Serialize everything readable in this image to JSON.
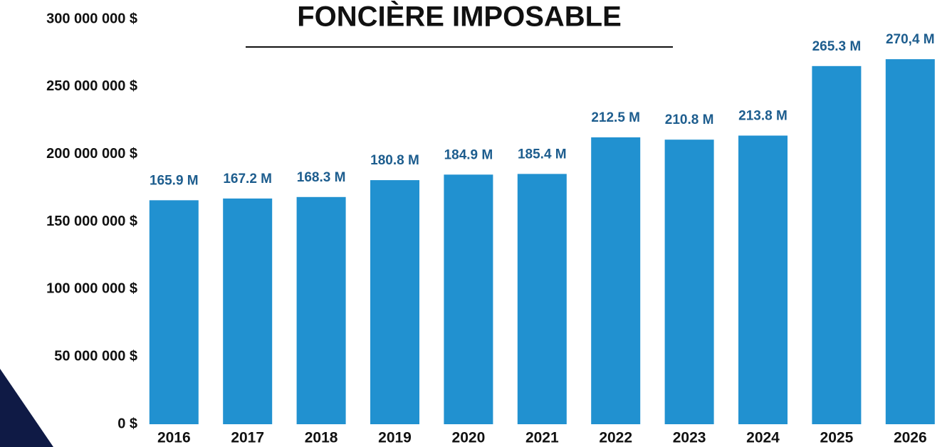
{
  "chart_data": {
    "type": "bar",
    "title": "FONCIÈRE IMPOSABLE",
    "categories": [
      "2016",
      "2017",
      "2018",
      "2019",
      "2020",
      "2021",
      "2022",
      "2023",
      "2024",
      "2025",
      "2026"
    ],
    "values": [
      165900000,
      167200000,
      168300000,
      180800000,
      184900000,
      185400000,
      212500000,
      210800000,
      213800000,
      265300000,
      270400000
    ],
    "value_labels": [
      "165.9 M",
      "167.2 M",
      "168.3 M",
      "180.8 M",
      "184.9 M",
      "185.4 M",
      "212.5 M",
      "210.8 M",
      "213.8 M",
      "265.3 M",
      "270,4 M"
    ],
    "color": "#2191d0",
    "ylim": [
      0,
      300000000
    ],
    "yticks": [
      {
        "value": 0,
        "label": "0 $"
      },
      {
        "value": 50000000,
        "label": "50 000 000 $"
      },
      {
        "value": 100000000,
        "label": "100 000 000 $"
      },
      {
        "value": 150000000,
        "label": "150 000 000 $"
      },
      {
        "value": 200000000,
        "label": "200 000 000 $"
      },
      {
        "value": 250000000,
        "label": "250 000 000 $"
      },
      {
        "value": 300000000,
        "label": "300 000 000 $"
      }
    ],
    "grid": false
  }
}
